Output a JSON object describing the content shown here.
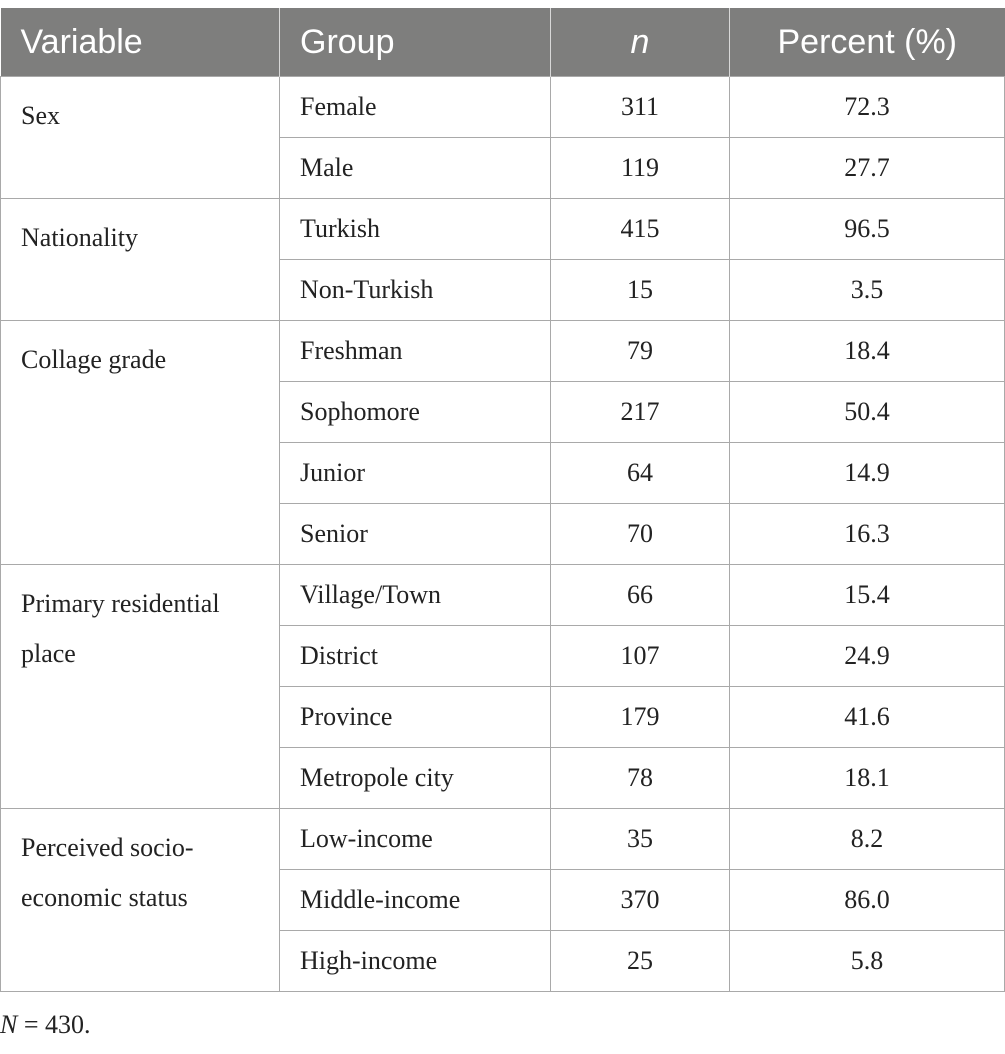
{
  "table": {
    "headers": {
      "variable": "Variable",
      "group": "Group",
      "n": "n",
      "percent": "Percent (%)"
    },
    "groups": [
      {
        "variable": "Sex",
        "rows": [
          {
            "group": "Female",
            "n": "311",
            "percent": "72.3"
          },
          {
            "group": "Male",
            "n": "119",
            "percent": "27.7"
          }
        ]
      },
      {
        "variable": "Nationality",
        "rows": [
          {
            "group": "Turkish",
            "n": "415",
            "percent": "96.5"
          },
          {
            "group": "Non-Turkish",
            "n": "15",
            "percent": "3.5"
          }
        ]
      },
      {
        "variable": "Collage grade",
        "rows": [
          {
            "group": "Freshman",
            "n": "79",
            "percent": "18.4"
          },
          {
            "group": "Sophomore",
            "n": "217",
            "percent": "50.4"
          },
          {
            "group": "Junior",
            "n": "64",
            "percent": "14.9"
          },
          {
            "group": "Senior",
            "n": "70",
            "percent": "16.3"
          }
        ]
      },
      {
        "variable": "Primary residential place",
        "rows": [
          {
            "group": "Village/Town",
            "n": "66",
            "percent": "15.4"
          },
          {
            "group": "District",
            "n": "107",
            "percent": "24.9"
          },
          {
            "group": "Province",
            "n": "179",
            "percent": "41.6"
          },
          {
            "group": "Metropole city",
            "n": "78",
            "percent": "18.1"
          }
        ]
      },
      {
        "variable": "Perceived socio-economic status",
        "rows": [
          {
            "group": "Low-income",
            "n": "35",
            "percent": "8.2"
          },
          {
            "group": "Middle-income",
            "n": "370",
            "percent": "86.0"
          },
          {
            "group": "High-income",
            "n": "25",
            "percent": "5.8"
          }
        ]
      }
    ]
  },
  "note": {
    "symbol": "N",
    "text": " = 430."
  }
}
